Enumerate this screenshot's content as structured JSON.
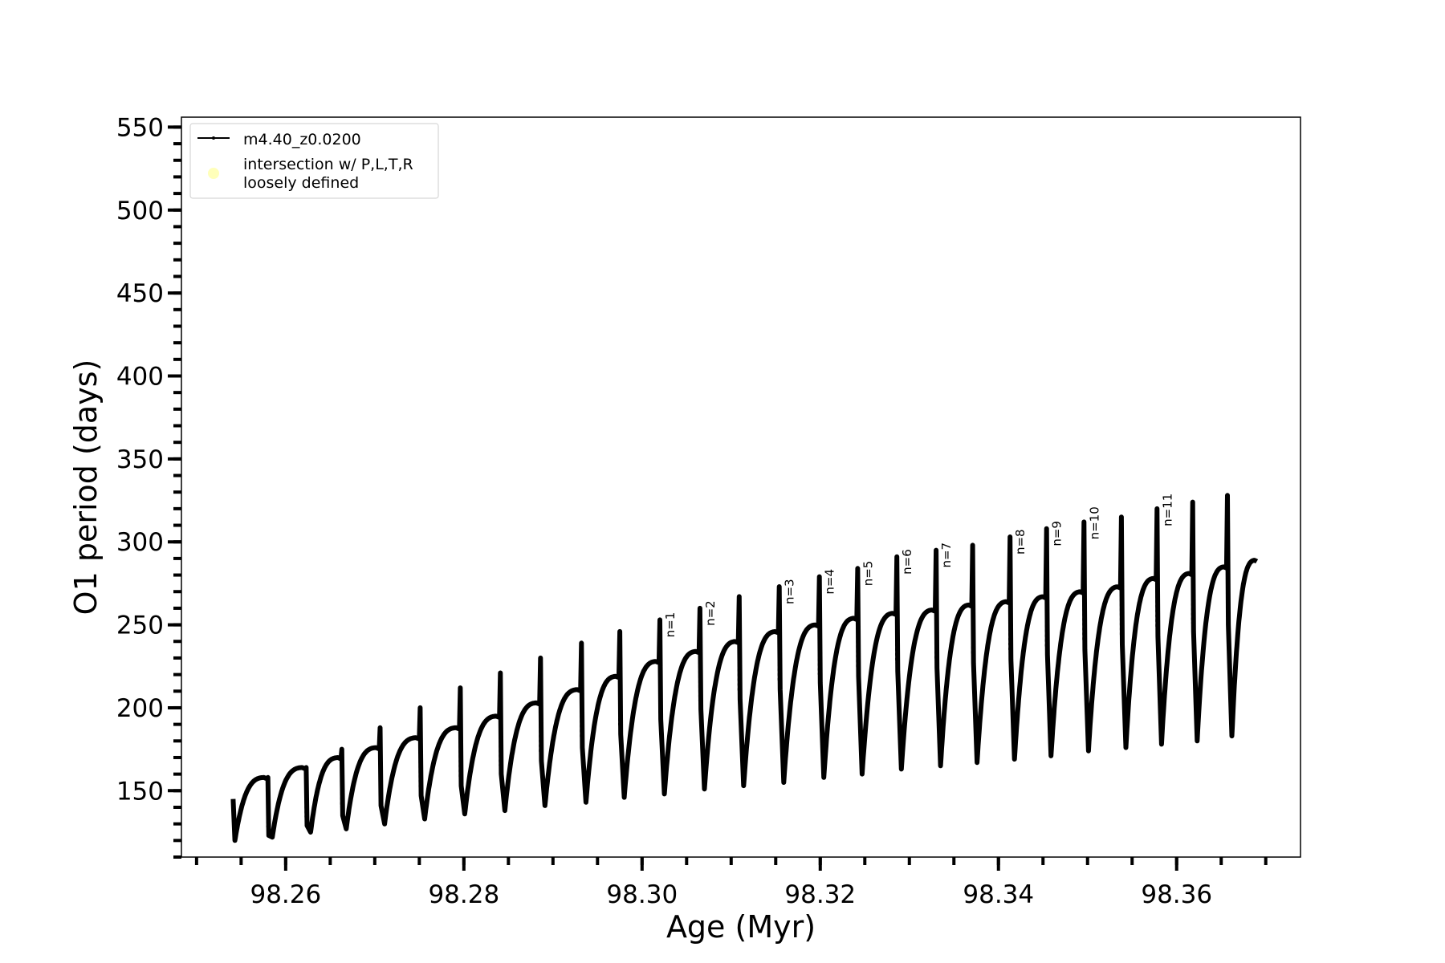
{
  "chart_data": {
    "type": "line",
    "title": "",
    "xlabel": "Age (Myr)",
    "ylabel": "O1 period (days)",
    "xlim": [
      98.2483,
      98.3739
    ],
    "ylim": [
      110,
      556
    ],
    "x_ticks": [
      98.26,
      98.28,
      98.3,
      98.32,
      98.34,
      98.36
    ],
    "x_tick_labels": [
      "98.26",
      "98.28",
      "98.30",
      "98.32",
      "98.34",
      "98.36"
    ],
    "x_minor_step": 0.005,
    "y_ticks": [
      150,
      200,
      250,
      300,
      350,
      400,
      450,
      500,
      550
    ],
    "y_tick_labels": [
      "150",
      "200",
      "250",
      "300",
      "350",
      "400",
      "450",
      "500",
      "550"
    ],
    "y_minor_step": 10,
    "grid": false,
    "legend": {
      "placement": "top-left",
      "entries": [
        {
          "label": "m4.40_z0.0200",
          "color": "#000000",
          "marker": "line-dot"
        },
        {
          "label": "intersection w/ P,L,T,R\nloosely defined",
          "label_lines": [
            "intersection w/ P,L,T,R",
            "loosely defined"
          ],
          "color": "#ffffb3",
          "marker": "circle"
        }
      ]
    },
    "series": [
      {
        "name": "m4.40_z0.0200",
        "color": "#000000",
        "start": {
          "age": 98.2541,
          "period": 145,
          "min": 120
        },
        "cycles": [
          {
            "age": 98.258,
            "peak": 158,
            "spike_top": 158,
            "min": 122
          },
          {
            "age": 98.2623,
            "peak": 164,
            "spike_top": 164,
            "min": 125
          },
          {
            "age": 98.2663,
            "peak": 170,
            "spike_top": 175,
            "min": 127
          },
          {
            "age": 98.2706,
            "peak": 176,
            "spike_top": 188,
            "min": 130
          },
          {
            "age": 98.2751,
            "peak": 182,
            "spike_top": 200,
            "min": 133
          },
          {
            "age": 98.2796,
            "peak": 188,
            "spike_top": 212,
            "min": 136
          },
          {
            "age": 98.2841,
            "peak": 195,
            "spike_top": 221,
            "min": 138
          },
          {
            "age": 98.2886,
            "peak": 203,
            "spike_top": 230,
            "min": 141
          },
          {
            "age": 98.2932,
            "peak": 211,
            "spike_top": 239,
            "min": 143
          },
          {
            "age": 98.2975,
            "peak": 219,
            "spike_top": 246,
            "min": 146
          },
          {
            "age": 98.302,
            "peak": 228,
            "spike_top": 253,
            "min": 148,
            "label": "n=1"
          },
          {
            "age": 98.3065,
            "peak": 234,
            "spike_top": 260,
            "min": 151,
            "label": "n=2"
          },
          {
            "age": 98.3109,
            "peak": 240,
            "spike_top": 267,
            "min": 153
          },
          {
            "age": 98.3154,
            "peak": 246,
            "spike_top": 273,
            "min": 155,
            "label": "n=3"
          },
          {
            "age": 98.3199,
            "peak": 250,
            "spike_top": 279,
            "min": 158,
            "label": "n=4"
          },
          {
            "age": 98.3242,
            "peak": 254,
            "spike_top": 284,
            "min": 160,
            "label": "n=5"
          },
          {
            "age": 98.3286,
            "peak": 257,
            "spike_top": 291,
            "min": 163,
            "label": "n=6"
          },
          {
            "age": 98.333,
            "peak": 259,
            "spike_top": 295,
            "min": 165,
            "label": "n=7"
          },
          {
            "age": 98.3371,
            "peak": 262,
            "spike_top": 298,
            "min": 167
          },
          {
            "age": 98.3413,
            "peak": 264,
            "spike_top": 303,
            "min": 169,
            "label": "n=8"
          },
          {
            "age": 98.3454,
            "peak": 267,
            "spike_top": 308,
            "min": 171,
            "label": "n=9"
          },
          {
            "age": 98.3496,
            "peak": 270,
            "spike_top": 312,
            "min": 174,
            "label": "n=10"
          },
          {
            "age": 98.3538,
            "peak": 273,
            "spike_top": 315,
            "min": 176
          },
          {
            "age": 98.3578,
            "peak": 278,
            "spike_top": 320,
            "min": 178,
            "label": "n=11"
          },
          {
            "age": 98.3618,
            "peak": 281,
            "spike_top": 324,
            "min": 180
          },
          {
            "age": 98.3657,
            "peak": 285,
            "spike_top": 328,
            "min": 183
          }
        ],
        "end": {
          "age": 98.369,
          "period": 289
        }
      }
    ]
  }
}
